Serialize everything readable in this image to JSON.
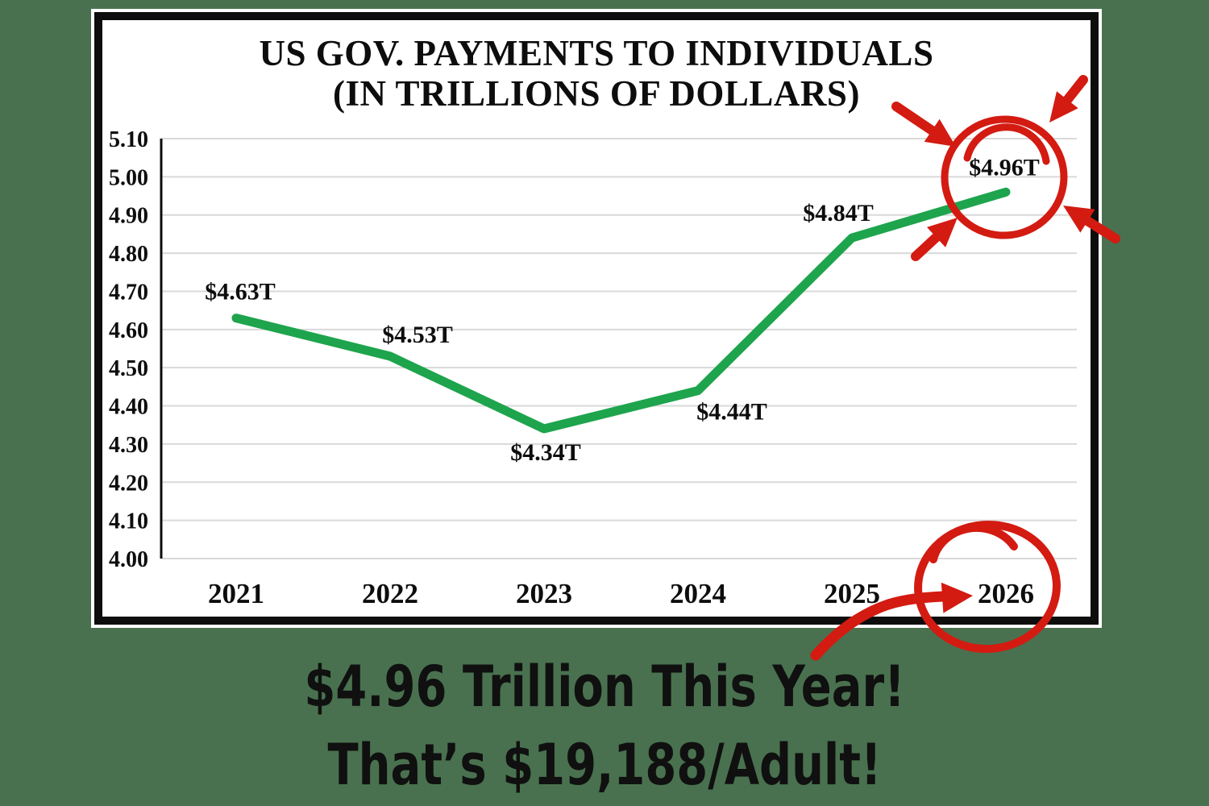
{
  "colors": {
    "background": "#49714f",
    "card_border": "#0d0d0d",
    "grid": "#d9d9d9",
    "line_green": "#1ea44c",
    "annotation_red": "#d31b12",
    "text": "#0d0d0d"
  },
  "chart_data": {
    "type": "line",
    "title": "US GOV. PAYMENTS TO INDIVIDUALS (IN TRILLIONS OF DOLLARS)",
    "title_line1": "US GOV. PAYMENTS TO INDIVIDUALS",
    "title_line2": "(IN TRILLIONS OF DOLLARS)",
    "categories": [
      "2021",
      "2022",
      "2023",
      "2024",
      "2025",
      "2026"
    ],
    "values": [
      4.63,
      4.53,
      4.34,
      4.44,
      4.84,
      4.96
    ],
    "point_labels": [
      "$4.63T",
      "$4.53T",
      "$4.34T",
      "$4.44T",
      "$4.84T",
      "$4.96T"
    ],
    "ylim": [
      4.0,
      5.1
    ],
    "ytick_labels": [
      "5.10",
      "5.00",
      "4.90",
      "4.80",
      "4.70",
      "4.60",
      "4.50",
      "4.40",
      "4.30",
      "4.20",
      "4.10",
      "4.00"
    ],
    "xlabel": "",
    "ylabel": "",
    "grid": true,
    "legend": false,
    "line_color": "#1ea44c"
  },
  "annotations": {
    "highlight_value": "$4.96T",
    "highlight_year": "2026",
    "color": "#d31b12"
  },
  "caption": {
    "line1": "$4.96 Trillion This Year!",
    "line2": "That’s $19,188/Adult!"
  }
}
